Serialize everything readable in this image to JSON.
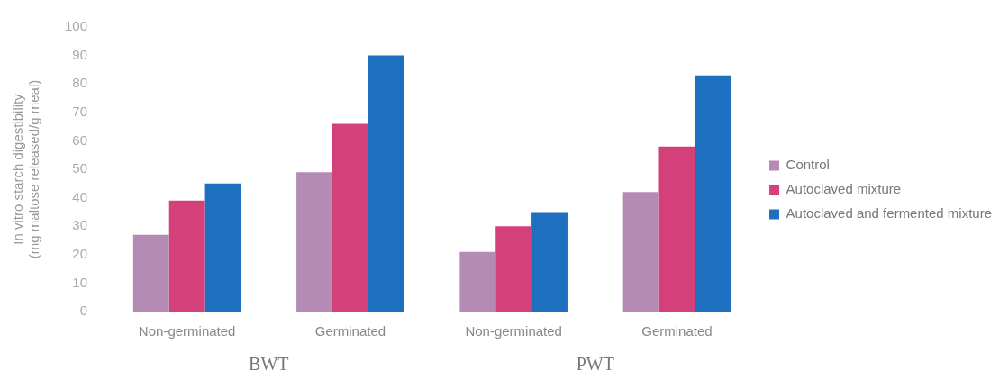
{
  "chart_data": {
    "type": "bar",
    "ylabel": "In vitro starch digestibility (mg maltose released/g meal)",
    "categories": [
      "Non-germinated",
      "Germinated",
      "Non-germinated",
      "Germinated"
    ],
    "series": [
      {
        "name": "Control",
        "color": "#b48bb5",
        "values": [
          27,
          49,
          21,
          42
        ]
      },
      {
        "name": "Autoclaved mixture",
        "color": "#d4407a",
        "values": [
          39,
          66,
          30,
          58
        ]
      },
      {
        "name": "Autoclaved and fermented mixture",
        "color": "#1f6fc0",
        "values": [
          45,
          90,
          35,
          83
        ]
      }
    ],
    "ylim": [
      0,
      100
    ],
    "yticks": [
      0,
      10,
      20,
      30,
      40,
      50,
      60,
      70,
      80,
      90,
      100
    ],
    "annotations": [
      "BWT",
      "PWT"
    ],
    "grid": false,
    "legend": "right"
  }
}
